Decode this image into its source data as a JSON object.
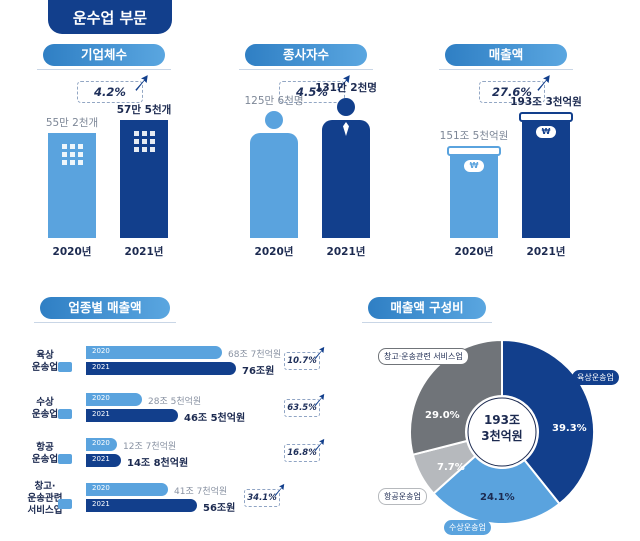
{
  "header": {
    "title": "운수업 부문"
  },
  "colors": {
    "dark": "#123f8c",
    "light": "#5aa3de",
    "gray": "#707479",
    "lightgray": "#b6b9bd",
    "text": "#1c2a50"
  },
  "top_panels": [
    {
      "title": "기업체수",
      "growth": "4.2%",
      "prev_label": "55만 2천개",
      "curr_label": "57만 5천개",
      "years": [
        "2020년",
        "2021년"
      ],
      "icon": "building-icon"
    },
    {
      "title": "종사자수",
      "growth": "4.5%",
      "prev_label": "125만 6천명",
      "curr_label": "131만 2천명",
      "years": [
        "2020년",
        "2021년"
      ],
      "icon": "person-icon"
    },
    {
      "title": "매출액",
      "growth": "27.6%",
      "prev_label": "151조 5천억원",
      "curr_label": "193조 3천억원",
      "years": [
        "2020년",
        "2021년"
      ],
      "icon": "won-icon"
    }
  ],
  "industry_sales": {
    "title": "업종별 매출액",
    "rows": [
      {
        "label": "육상\n운송업",
        "icon": "truck-icon",
        "prev_year": "2020",
        "curr_year": "2021",
        "prev_label": "68조 7천억원",
        "curr_label": "76조원",
        "growth": "10.7%"
      },
      {
        "label": "수상\n운송업",
        "icon": "ship-icon",
        "prev_year": "2020",
        "curr_year": "2021",
        "prev_label": "28조 5천억원",
        "curr_label": "46조 5천억원",
        "growth": "63.5%"
      },
      {
        "label": "항공\n운송업",
        "icon": "airplane-icon",
        "prev_year": "2020",
        "curr_year": "2021",
        "prev_label": "12조 7천억원",
        "curr_label": "14조 8천억원",
        "growth": "16.8%"
      },
      {
        "label": "창고·\n운송관련\n서비스업",
        "icon": "warehouse-icon",
        "prev_year": "2020",
        "curr_year": "2021",
        "prev_label": "41조 7천억원",
        "curr_label": "56조원",
        "growth": "34.1%"
      }
    ]
  },
  "composition": {
    "title": "매출액 구성비",
    "center_line1": "193조",
    "center_line2": "3천억원",
    "labels": {
      "land": "육상운송업",
      "water": "수상운송업",
      "air": "항공운송업",
      "warehouse": "창고·운송관련 서비스업"
    },
    "pct_labels": {
      "land": "39.3%",
      "water": "24.1%",
      "air": "7.7%",
      "warehouse": "29.0%"
    }
  },
  "chart_data": [
    {
      "type": "bar",
      "title": "기업체수",
      "categories": [
        "2020년",
        "2021년"
      ],
      "values": [
        552000,
        575000
      ],
      "value_labels": [
        "55만 2천개",
        "57만 5천개"
      ],
      "growth": "4.2%"
    },
    {
      "type": "bar",
      "title": "종사자수",
      "categories": [
        "2020년",
        "2021년"
      ],
      "values": [
        1256000,
        1312000
      ],
      "value_labels": [
        "125만 6천명",
        "131만 2천명"
      ],
      "growth": "4.5%"
    },
    {
      "type": "bar",
      "title": "매출액",
      "categories": [
        "2020년",
        "2021년"
      ],
      "values": [
        151.5,
        193.3
      ],
      "value_labels": [
        "151조 5천억원",
        "193조 3천억원"
      ],
      "growth": "27.6%"
    },
    {
      "type": "bar",
      "title": "업종별 매출액",
      "categories": [
        "육상운송업",
        "수상운송업",
        "항공운송업",
        "창고·운송관련 서비스업"
      ],
      "series": [
        {
          "name": "2020",
          "values": [
            68.7,
            28.5,
            12.7,
            41.7
          ]
        },
        {
          "name": "2021",
          "values": [
            76.0,
            46.5,
            14.8,
            56.0
          ]
        }
      ]
    },
    {
      "type": "pie",
      "title": "매출액 구성비",
      "categories": [
        "육상운송업",
        "수상운송업",
        "항공운송업",
        "창고·운송관련 서비스업"
      ],
      "values": [
        39.3,
        24.1,
        7.7,
        29.0
      ]
    }
  ]
}
